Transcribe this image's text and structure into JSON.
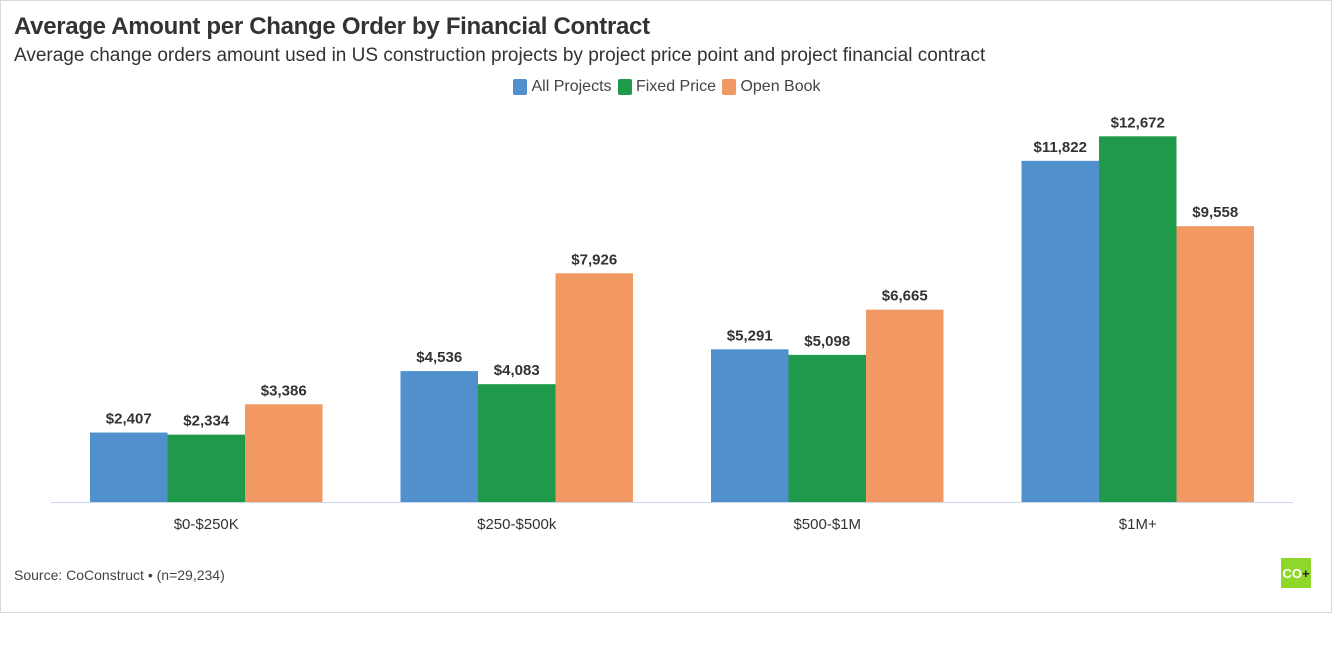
{
  "chart_data": {
    "type": "bar",
    "title": "Average Amount per Change Order by Financial Contract",
    "subtitle": "Average change orders amount used in US construction projects by project price point and project financial contract",
    "categories": [
      "$0-$250K",
      "$250-$500k",
      "$500-$1M",
      "$1M+"
    ],
    "series": [
      {
        "name": "All Projects",
        "color": "#4f90cd",
        "values": [
          2407,
          4536,
          5291,
          11822
        ],
        "labels": [
          "$2,407",
          "$4,536",
          "$5,291",
          "$11,822"
        ]
      },
      {
        "name": "Fixed Price",
        "color": "#1f9a4b",
        "values": [
          2334,
          4083,
          5098,
          12672
        ],
        "labels": [
          "$2,334",
          "$4,083",
          "$5,098",
          "$12,672"
        ]
      },
      {
        "name": "Open Book",
        "color": "#f29863",
        "values": [
          3386,
          7926,
          6665,
          9558
        ],
        "labels": [
          "$3,386",
          "$7,926",
          "$6,665",
          "$9,558"
        ]
      }
    ],
    "xlabel": "",
    "ylabel": "",
    "ylim": [
      0,
      14000
    ],
    "y_axis_visible": false,
    "grid": false,
    "legend": "top-center",
    "source": "Source: CoConstruct • (n=29,234)"
  },
  "logo": {
    "text": "CO",
    "symbol": "+",
    "color": "#8fd82a"
  }
}
